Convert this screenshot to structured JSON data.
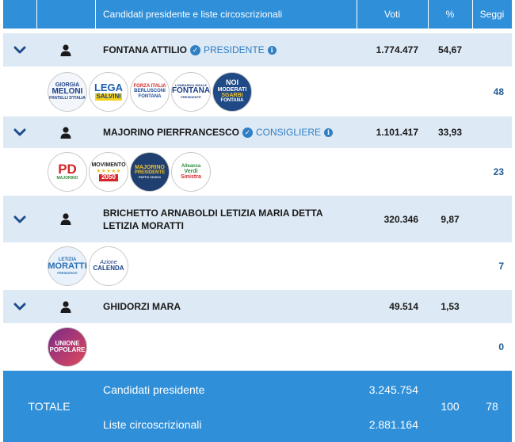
{
  "header": {
    "col_candidates": "Candidati presidente e liste circoscrizionali",
    "col_voti": "Voti",
    "col_pct": "%",
    "col_seggi": "Seggi"
  },
  "candidates": [
    {
      "name": "FONTANA ATTILIO",
      "role": "PRESIDENTE",
      "voti": "1.774.477",
      "pct": "54,67",
      "seggi": "48",
      "lists": [
        {
          "icon": "fratelli-d-italia-logo",
          "lines": [
            "GIORGIA",
            "MELONI",
            "FRATELLI D'ITALIA"
          ]
        },
        {
          "icon": "lega-logo",
          "lines": [
            "LEGA",
            "SALVINI"
          ]
        },
        {
          "icon": "forza-italia-logo",
          "lines": [
            "FORZA ITALIA",
            "BERLUSCONI",
            "FONTANA"
          ]
        },
        {
          "icon": "lombardia-ideale-logo",
          "lines": [
            "LOMBARDIA IDEALE",
            "FONTANA",
            "PRESIDENTE"
          ]
        },
        {
          "icon": "noi-moderati-logo",
          "lines": [
            "NOI",
            "MODERATI",
            "SGARBI",
            "FONTANA"
          ]
        }
      ]
    },
    {
      "name": "MAJORINO PIERFRANCESCO",
      "role": "CONSIGLIERE",
      "voti": "1.101.417",
      "pct": "33,93",
      "seggi": "23",
      "lists": [
        {
          "icon": "pd-logo",
          "lines": [
            "PD",
            "MAJORINO"
          ]
        },
        {
          "icon": "movimento-5-stelle-logo",
          "lines": [
            "MOVIMENTO",
            "2050"
          ]
        },
        {
          "icon": "majorino-presidente-logo",
          "lines": [
            "MAJORINO",
            "PRESIDENTE",
            "PATTO CIVICO"
          ]
        },
        {
          "icon": "alleanza-verdi-sinistra-logo",
          "lines": [
            "Alleanza",
            "Verdi",
            "Sinistra"
          ]
        }
      ]
    },
    {
      "name": "BRICHETTO ARNABOLDI LETIZIA MARIA DETTA LETIZIA MORATTI",
      "role": "",
      "voti": "320.346",
      "pct": "9,87",
      "seggi": "7",
      "lists": [
        {
          "icon": "letizia-moratti-logo",
          "lines": [
            "LETIZIA",
            "MORATTI",
            "PRESIDENTE"
          ]
        },
        {
          "icon": "azione-calenda-logo",
          "lines": [
            "Azione",
            "CALENDA"
          ]
        }
      ]
    },
    {
      "name": "GHIDORZI MARA",
      "role": "",
      "voti": "49.514",
      "pct": "1,53",
      "seggi": "0",
      "lists": [
        {
          "icon": "unione-popolare-logo",
          "lines": [
            "UNIONE",
            "POPOLARE"
          ]
        }
      ]
    }
  ],
  "total": {
    "label": "TOTALE",
    "line1_label": "Candidati presidente",
    "line1_value": "3.245.754",
    "line2_label": "Liste circoscrizionali",
    "line2_value": "2.881.164",
    "pct": "100",
    "seggi": "78"
  },
  "colors": {
    "header_bg": "#2f8fd8",
    "candidate_row_bg": "#dde9f4",
    "accent": "#2f7fc4",
    "seggi_text": "#1d5a91"
  }
}
